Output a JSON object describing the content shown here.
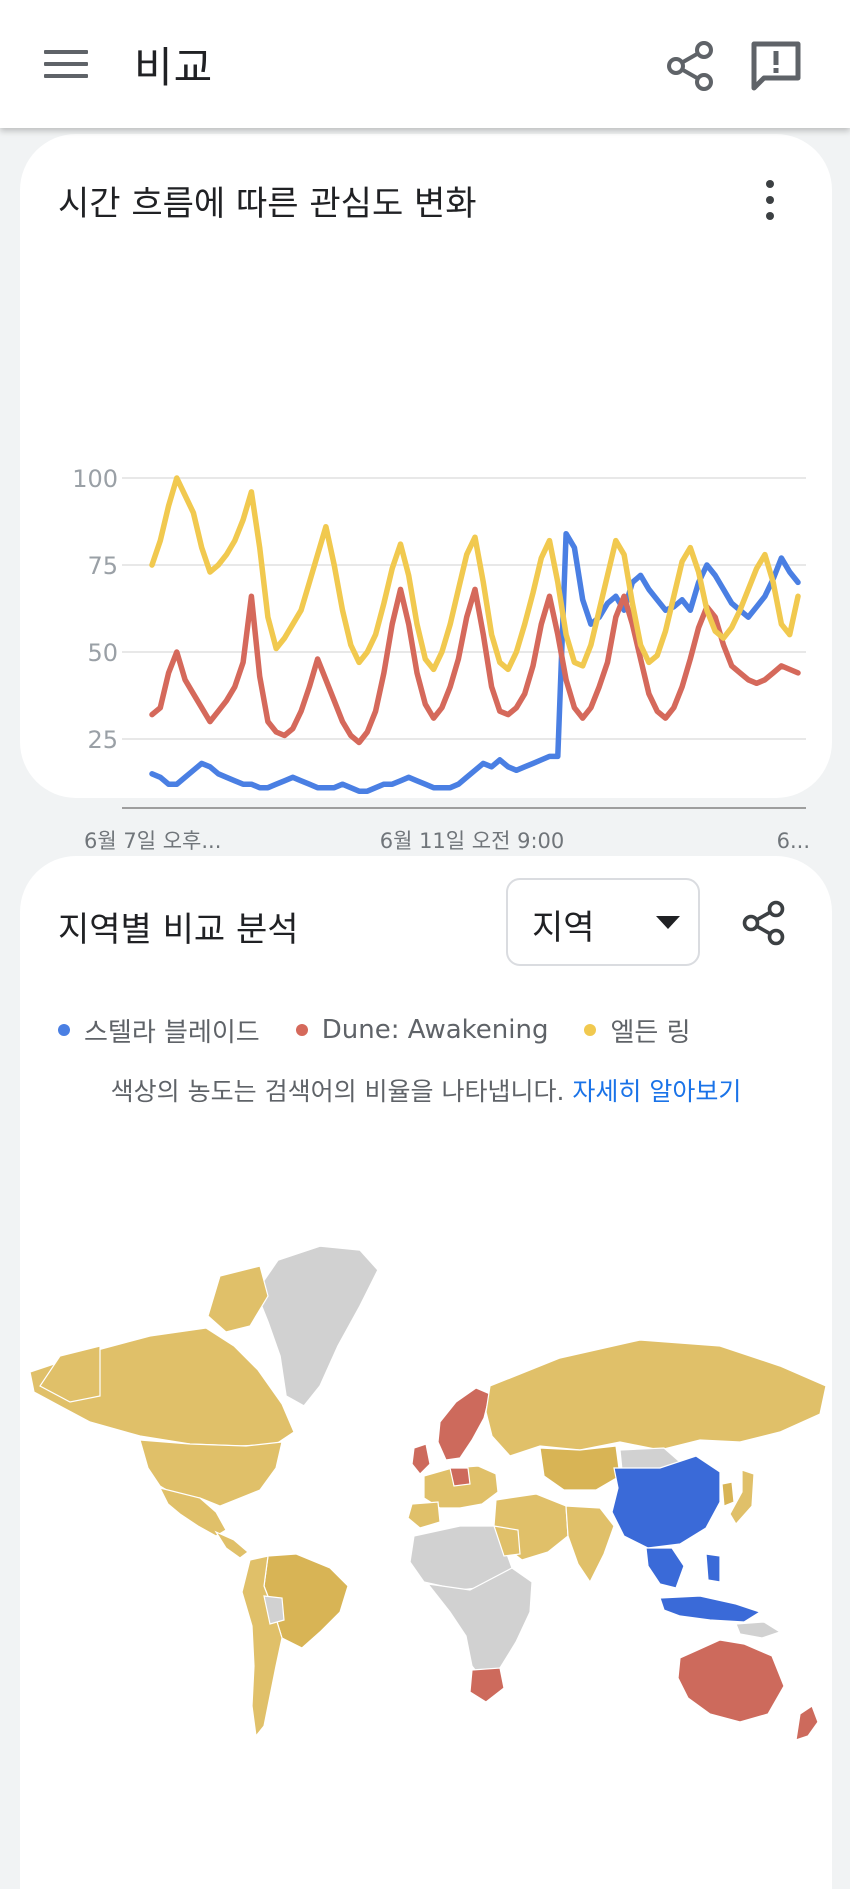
{
  "appbar": {
    "title": "비교"
  },
  "interest_card": {
    "title": "시간 흐름에 따른 관심도 변화",
    "chart_data": {
      "type": "line",
      "title": "시간 흐름에 따른 관심도 변화",
      "ylim": [
        0,
        100
      ],
      "yticks": [
        "100",
        "75",
        "50",
        "25"
      ],
      "xticks": [
        "6월 7일 오후...",
        "6월 11일 오전 9:00",
        "6..."
      ],
      "grid": true,
      "series": [
        {
          "name": "스텔라 블레이드",
          "color": "#4a7fe3",
          "values": [
            15,
            14,
            12,
            12,
            14,
            16,
            18,
            17,
            15,
            14,
            13,
            12,
            12,
            11,
            11,
            12,
            13,
            14,
            13,
            12,
            11,
            11,
            11,
            12,
            11,
            10,
            10,
            11,
            12,
            12,
            13,
            14,
            13,
            12,
            11,
            11,
            11,
            12,
            14,
            16,
            18,
            17,
            19,
            17,
            16,
            17,
            18,
            19,
            20,
            20,
            84,
            80,
            65,
            58,
            60,
            64,
            66,
            62,
            70,
            72,
            68,
            65,
            62,
            63,
            65,
            62,
            70,
            75,
            72,
            68,
            64,
            62,
            60,
            63,
            66,
            71,
            77,
            73,
            70
          ]
        },
        {
          "name": "Dune: Awakening",
          "color": "#d5695b",
          "values": [
            32,
            34,
            44,
            50,
            42,
            38,
            34,
            30,
            33,
            36,
            40,
            47,
            66,
            43,
            30,
            27,
            26,
            28,
            33,
            40,
            48,
            42,
            36,
            30,
            26,
            24,
            27,
            33,
            44,
            58,
            68,
            58,
            44,
            35,
            31,
            34,
            40,
            48,
            60,
            68,
            55,
            40,
            33,
            32,
            34,
            38,
            46,
            58,
            66,
            55,
            42,
            34,
            31,
            34,
            40,
            47,
            60,
            66,
            58,
            48,
            38,
            33,
            31,
            34,
            40,
            48,
            57,
            63,
            60,
            52,
            46,
            44,
            42,
            41,
            42,
            44,
            46,
            45,
            44
          ]
        },
        {
          "name": "엘든 링",
          "color": "#f1c94f",
          "values": [
            75,
            82,
            92,
            100,
            95,
            90,
            80,
            73,
            75,
            78,
            82,
            88,
            96,
            80,
            60,
            51,
            54,
            58,
            62,
            70,
            78,
            86,
            75,
            62,
            52,
            47,
            50,
            55,
            64,
            74,
            81,
            72,
            58,
            48,
            45,
            50,
            58,
            68,
            78,
            83,
            70,
            55,
            47,
            45,
            50,
            58,
            67,
            77,
            82,
            70,
            55,
            47,
            46,
            52,
            62,
            72,
            82,
            78,
            64,
            52,
            47,
            49,
            56,
            66,
            76,
            80,
            73,
            62,
            56,
            54,
            57,
            62,
            68,
            74,
            78,
            70,
            58,
            55,
            66
          ]
        }
      ]
    }
  },
  "region_card": {
    "title": "지역별 비교 분석",
    "select": {
      "label": "지역"
    },
    "legend": [
      {
        "label": "스텔라 블레이드",
        "color": "#4a7fe3"
      },
      {
        "label": "Dune: Awakening",
        "color": "#d5695b"
      },
      {
        "label": "엘든 링",
        "color": "#f1c94f"
      }
    ],
    "note": "색상의 농도는 검색어의 비율을 나타냅니다.",
    "note_link": "자세히 알아보기"
  }
}
